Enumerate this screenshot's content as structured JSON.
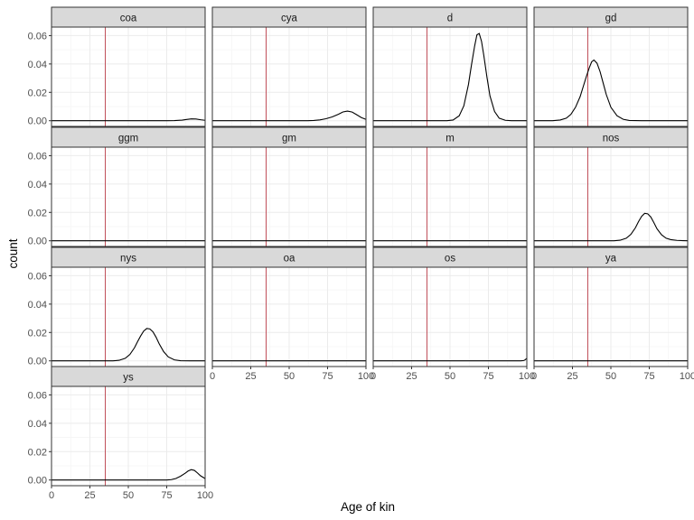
{
  "chart_data": {
    "type": "line",
    "xlabel": "Age of kin",
    "ylabel": "count",
    "xlim": [
      0,
      100
    ],
    "ylim": [
      -0.004,
      0.066
    ],
    "xticks": [
      0,
      25,
      50,
      75,
      100
    ],
    "yticks": [
      0.0,
      0.02,
      0.04,
      0.06
    ],
    "ytick_labels": [
      "0.00",
      "0.02",
      "0.04",
      "0.06"
    ],
    "vline_x": 35,
    "grid": true,
    "facets": [
      {
        "label": "coa",
        "x": [
          0,
          75,
          80,
          85,
          88,
          91,
          94,
          97,
          100
        ],
        "y": [
          0,
          0,
          0.0001,
          0.0004,
          0.0009,
          0.0013,
          0.0012,
          0.0007,
          0.0003
        ]
      },
      {
        "label": "cya",
        "x": [
          0,
          62,
          66,
          70,
          74,
          78,
          82,
          85,
          88,
          91,
          94,
          97,
          100
        ],
        "y": [
          0,
          0,
          0.0002,
          0.0006,
          0.0014,
          0.0027,
          0.0045,
          0.0062,
          0.0068,
          0.0061,
          0.0042,
          0.0022,
          0.0009
        ]
      },
      {
        "label": "d",
        "x": [
          0,
          48,
          52,
          56,
          59,
          62,
          64,
          66,
          67.5,
          69,
          70.5,
          72,
          74,
          76,
          79,
          82,
          86,
          90,
          100
        ],
        "y": [
          0,
          0,
          0.0005,
          0.0035,
          0.0105,
          0.0255,
          0.0395,
          0.0525,
          0.0605,
          0.0615,
          0.056,
          0.046,
          0.031,
          0.0175,
          0.0065,
          0.0018,
          0.0003,
          0,
          0
        ]
      },
      {
        "label": "gd",
        "x": [
          0,
          12,
          17,
          21,
          24,
          27,
          30,
          32,
          34,
          36,
          37.5,
          39,
          41,
          43,
          45,
          47,
          50,
          54,
          58,
          62,
          70,
          100
        ],
        "y": [
          0,
          0,
          0.0005,
          0.0018,
          0.0045,
          0.0095,
          0.017,
          0.024,
          0.031,
          0.0375,
          0.0415,
          0.0428,
          0.0405,
          0.0345,
          0.0265,
          0.0185,
          0.0095,
          0.0035,
          0.001,
          0.0002,
          0,
          0
        ]
      },
      {
        "label": "ggm",
        "x": [
          0,
          100
        ],
        "y": [
          0,
          0
        ]
      },
      {
        "label": "gm",
        "x": [
          0,
          100
        ],
        "y": [
          0,
          0
        ]
      },
      {
        "label": "m",
        "x": [
          0,
          100
        ],
        "y": [
          0,
          0
        ]
      },
      {
        "label": "nos",
        "x": [
          0,
          52,
          56,
          60,
          63,
          66,
          68,
          70,
          72,
          74,
          76,
          78,
          80,
          83,
          86,
          89,
          93,
          97,
          100
        ],
        "y": [
          0,
          0,
          0.0004,
          0.0018,
          0.0045,
          0.0092,
          0.0135,
          0.0172,
          0.0193,
          0.019,
          0.0168,
          0.0128,
          0.0085,
          0.0042,
          0.0018,
          0.0008,
          0.0003,
          0.0001,
          0
        ]
      },
      {
        "label": "nys",
        "x": [
          0,
          40,
          44,
          48,
          51,
          54,
          56,
          58,
          60,
          62,
          64,
          66,
          68,
          70,
          73,
          76,
          80,
          84,
          90,
          100
        ],
        "y": [
          0,
          0,
          0.0004,
          0.0018,
          0.0045,
          0.0092,
          0.0135,
          0.0175,
          0.021,
          0.0228,
          0.0225,
          0.0205,
          0.0168,
          0.0122,
          0.0065,
          0.0028,
          0.0007,
          0.0001,
          0,
          0
        ]
      },
      {
        "label": "oa",
        "x": [
          0,
          100
        ],
        "y": [
          0,
          0
        ]
      },
      {
        "label": "os",
        "x": [
          0,
          96,
          98,
          99,
          100
        ],
        "y": [
          0,
          0,
          0.0002,
          0.0008,
          0.0018
        ]
      },
      {
        "label": "ya",
        "x": [
          0,
          100
        ],
        "y": [
          0,
          0
        ]
      },
      {
        "label": "ys",
        "x": [
          0,
          75,
          78,
          81,
          84,
          87,
          89,
          91,
          93,
          95,
          97,
          100
        ],
        "y": [
          0,
          0,
          0.0003,
          0.0011,
          0.0027,
          0.0048,
          0.0064,
          0.0073,
          0.0068,
          0.005,
          0.003,
          0.001
        ]
      }
    ]
  },
  "colors": {
    "panel_border": "#333333",
    "strip_fill": "#d9d9d9",
    "grid_major": "#ebebeb",
    "grid_minor": "#f5f5f5",
    "curve": "#000000",
    "vline": "#c0505a",
    "tick_text": "#4d4d4d"
  }
}
